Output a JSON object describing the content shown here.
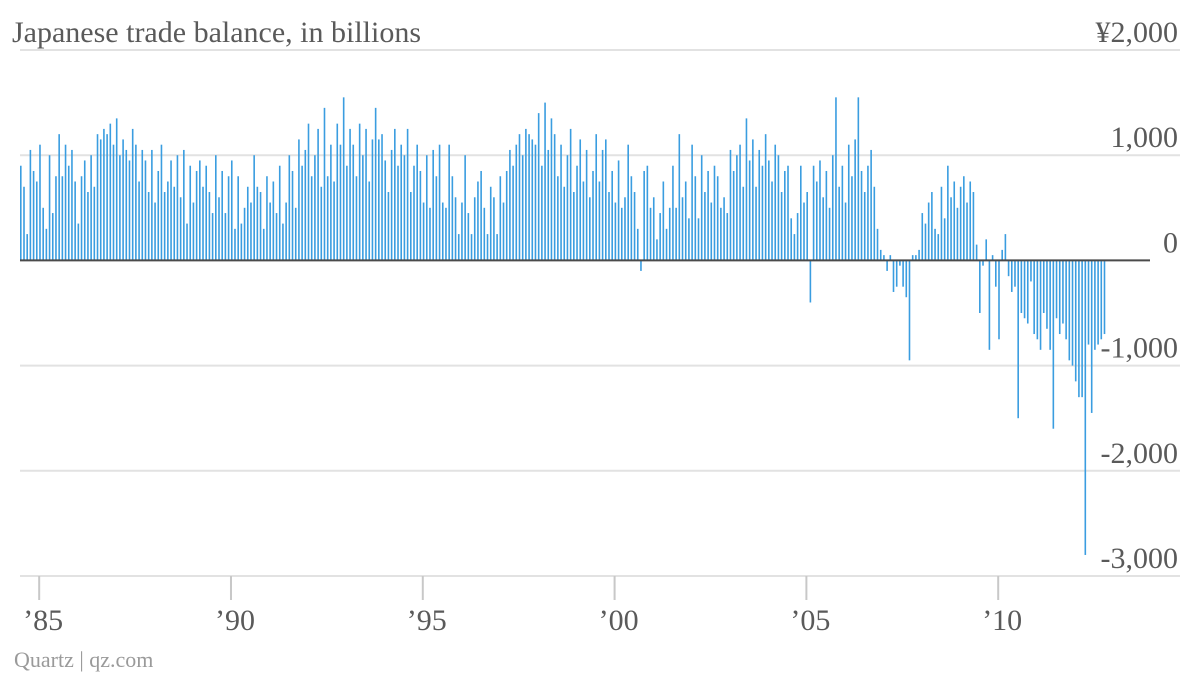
{
  "chart_data": {
    "type": "bar",
    "title": "Japanese trade balance, in billions",
    "source": "Quartz | qz.com",
    "y_tick_labels": [
      "¥2,000",
      "1,000",
      "0",
      "-1,000",
      "-2,000",
      "-3,000"
    ],
    "y_tick_values": [
      2000,
      1000,
      0,
      -1000,
      -2000,
      -3000
    ],
    "ylim": [
      -3000,
      2000
    ],
    "x_tick_labels": [
      "’85",
      "’90",
      "’95",
      "’00",
      "’05",
      "’10"
    ],
    "x_tick_years": [
      1985,
      1990,
      1995,
      2000,
      2005,
      2010
    ],
    "xlim": [
      1984.5,
      2015
    ],
    "grid": true,
    "colors": {
      "bars": "#3a9de0",
      "zero_line": "#4a4a4a",
      "grid": "#e2e2e2",
      "text": "#5a5a5a"
    },
    "series": [
      {
        "start": "1984-07",
        "frequency": "monthly",
        "values": [
          900,
          700,
          250,
          1050,
          850,
          750,
          1100,
          500,
          300,
          1000,
          450,
          800,
          1200,
          800,
          1100,
          900,
          1050,
          750,
          350,
          800,
          950,
          650,
          1000,
          700,
          1200,
          1150,
          1250,
          1200,
          1300,
          1100,
          1350,
          1000,
          1150,
          1050,
          950,
          1250,
          1100,
          750,
          1050,
          950,
          650,
          1050,
          550,
          850,
          1100,
          650,
          750,
          950,
          700,
          1000,
          600,
          1050,
          350,
          900,
          550,
          850,
          950,
          700,
          900,
          650,
          450,
          1000,
          600,
          850,
          450,
          800,
          950,
          300,
          800,
          350,
          500,
          700,
          550,
          1000,
          700,
          650,
          300,
          800,
          550,
          750,
          450,
          900,
          350,
          550,
          1000,
          850,
          500,
          1150,
          900,
          1050,
          1300,
          800,
          1000,
          1250,
          700,
          1450,
          800,
          1100,
          750,
          1300,
          1100,
          1550,
          900,
          1250,
          1100,
          800,
          1300,
          1000,
          1250,
          750,
          1150,
          1450,
          1150,
          1200,
          950,
          650,
          1050,
          1250,
          900,
          1100,
          1000,
          1250,
          650,
          900,
          1100,
          850,
          550,
          1000,
          500,
          1050,
          800,
          1100,
          550,
          500,
          1100,
          800,
          600,
          250,
          550,
          1000,
          450,
          250,
          600,
          750,
          850,
          500,
          250,
          700,
          600,
          250,
          800,
          550,
          850,
          1050,
          900,
          1100,
          1200,
          1000,
          1250,
          1200,
          1150,
          1100,
          1400,
          900,
          1500,
          1050,
          1350,
          1200,
          800,
          1100,
          700,
          1000,
          1250,
          650,
          900,
          1150,
          750,
          1050,
          600,
          850,
          1200,
          750,
          1050,
          1150,
          650,
          850,
          550,
          950,
          500,
          600,
          1100,
          800,
          650,
          300,
          -100,
          850,
          900,
          500,
          600,
          200,
          450,
          750,
          300,
          500,
          900,
          500,
          1200,
          600,
          750,
          400,
          1100,
          800,
          400,
          1000,
          650,
          850,
          550,
          900,
          800,
          500,
          600,
          450,
          1050,
          850,
          1000,
          1100,
          700,
          1350,
          950,
          1150,
          700,
          1050,
          900,
          1200,
          950,
          750,
          1100,
          1000,
          650,
          850,
          900,
          400,
          250,
          450,
          900,
          550,
          650,
          -400,
          900,
          750,
          950,
          600,
          850,
          500,
          1000,
          1550,
          700,
          900,
          550,
          1100,
          800,
          1150,
          1550,
          850,
          650,
          900,
          1050,
          700,
          300,
          100,
          50,
          -100,
          50,
          -300,
          -250,
          -50,
          -250,
          -350,
          -950,
          50,
          50,
          100,
          450,
          350,
          550,
          650,
          300,
          250,
          700,
          400,
          900,
          600,
          750,
          500,
          700,
          800,
          550,
          750,
          650,
          150,
          -500,
          -50,
          200,
          -850,
          50,
          -250,
          -750,
          100,
          250,
          -150,
          -300,
          -250,
          -1500,
          -500,
          -550,
          -600,
          -200,
          -700,
          -750,
          -850,
          -500,
          -650,
          -850,
          -1600,
          -550,
          -700,
          -600,
          -750,
          -950,
          -1000,
          -1150,
          -1300,
          -1300,
          -2800,
          -800,
          -1450,
          -850,
          -800,
          -750,
          -700
        ]
      }
    ]
  }
}
